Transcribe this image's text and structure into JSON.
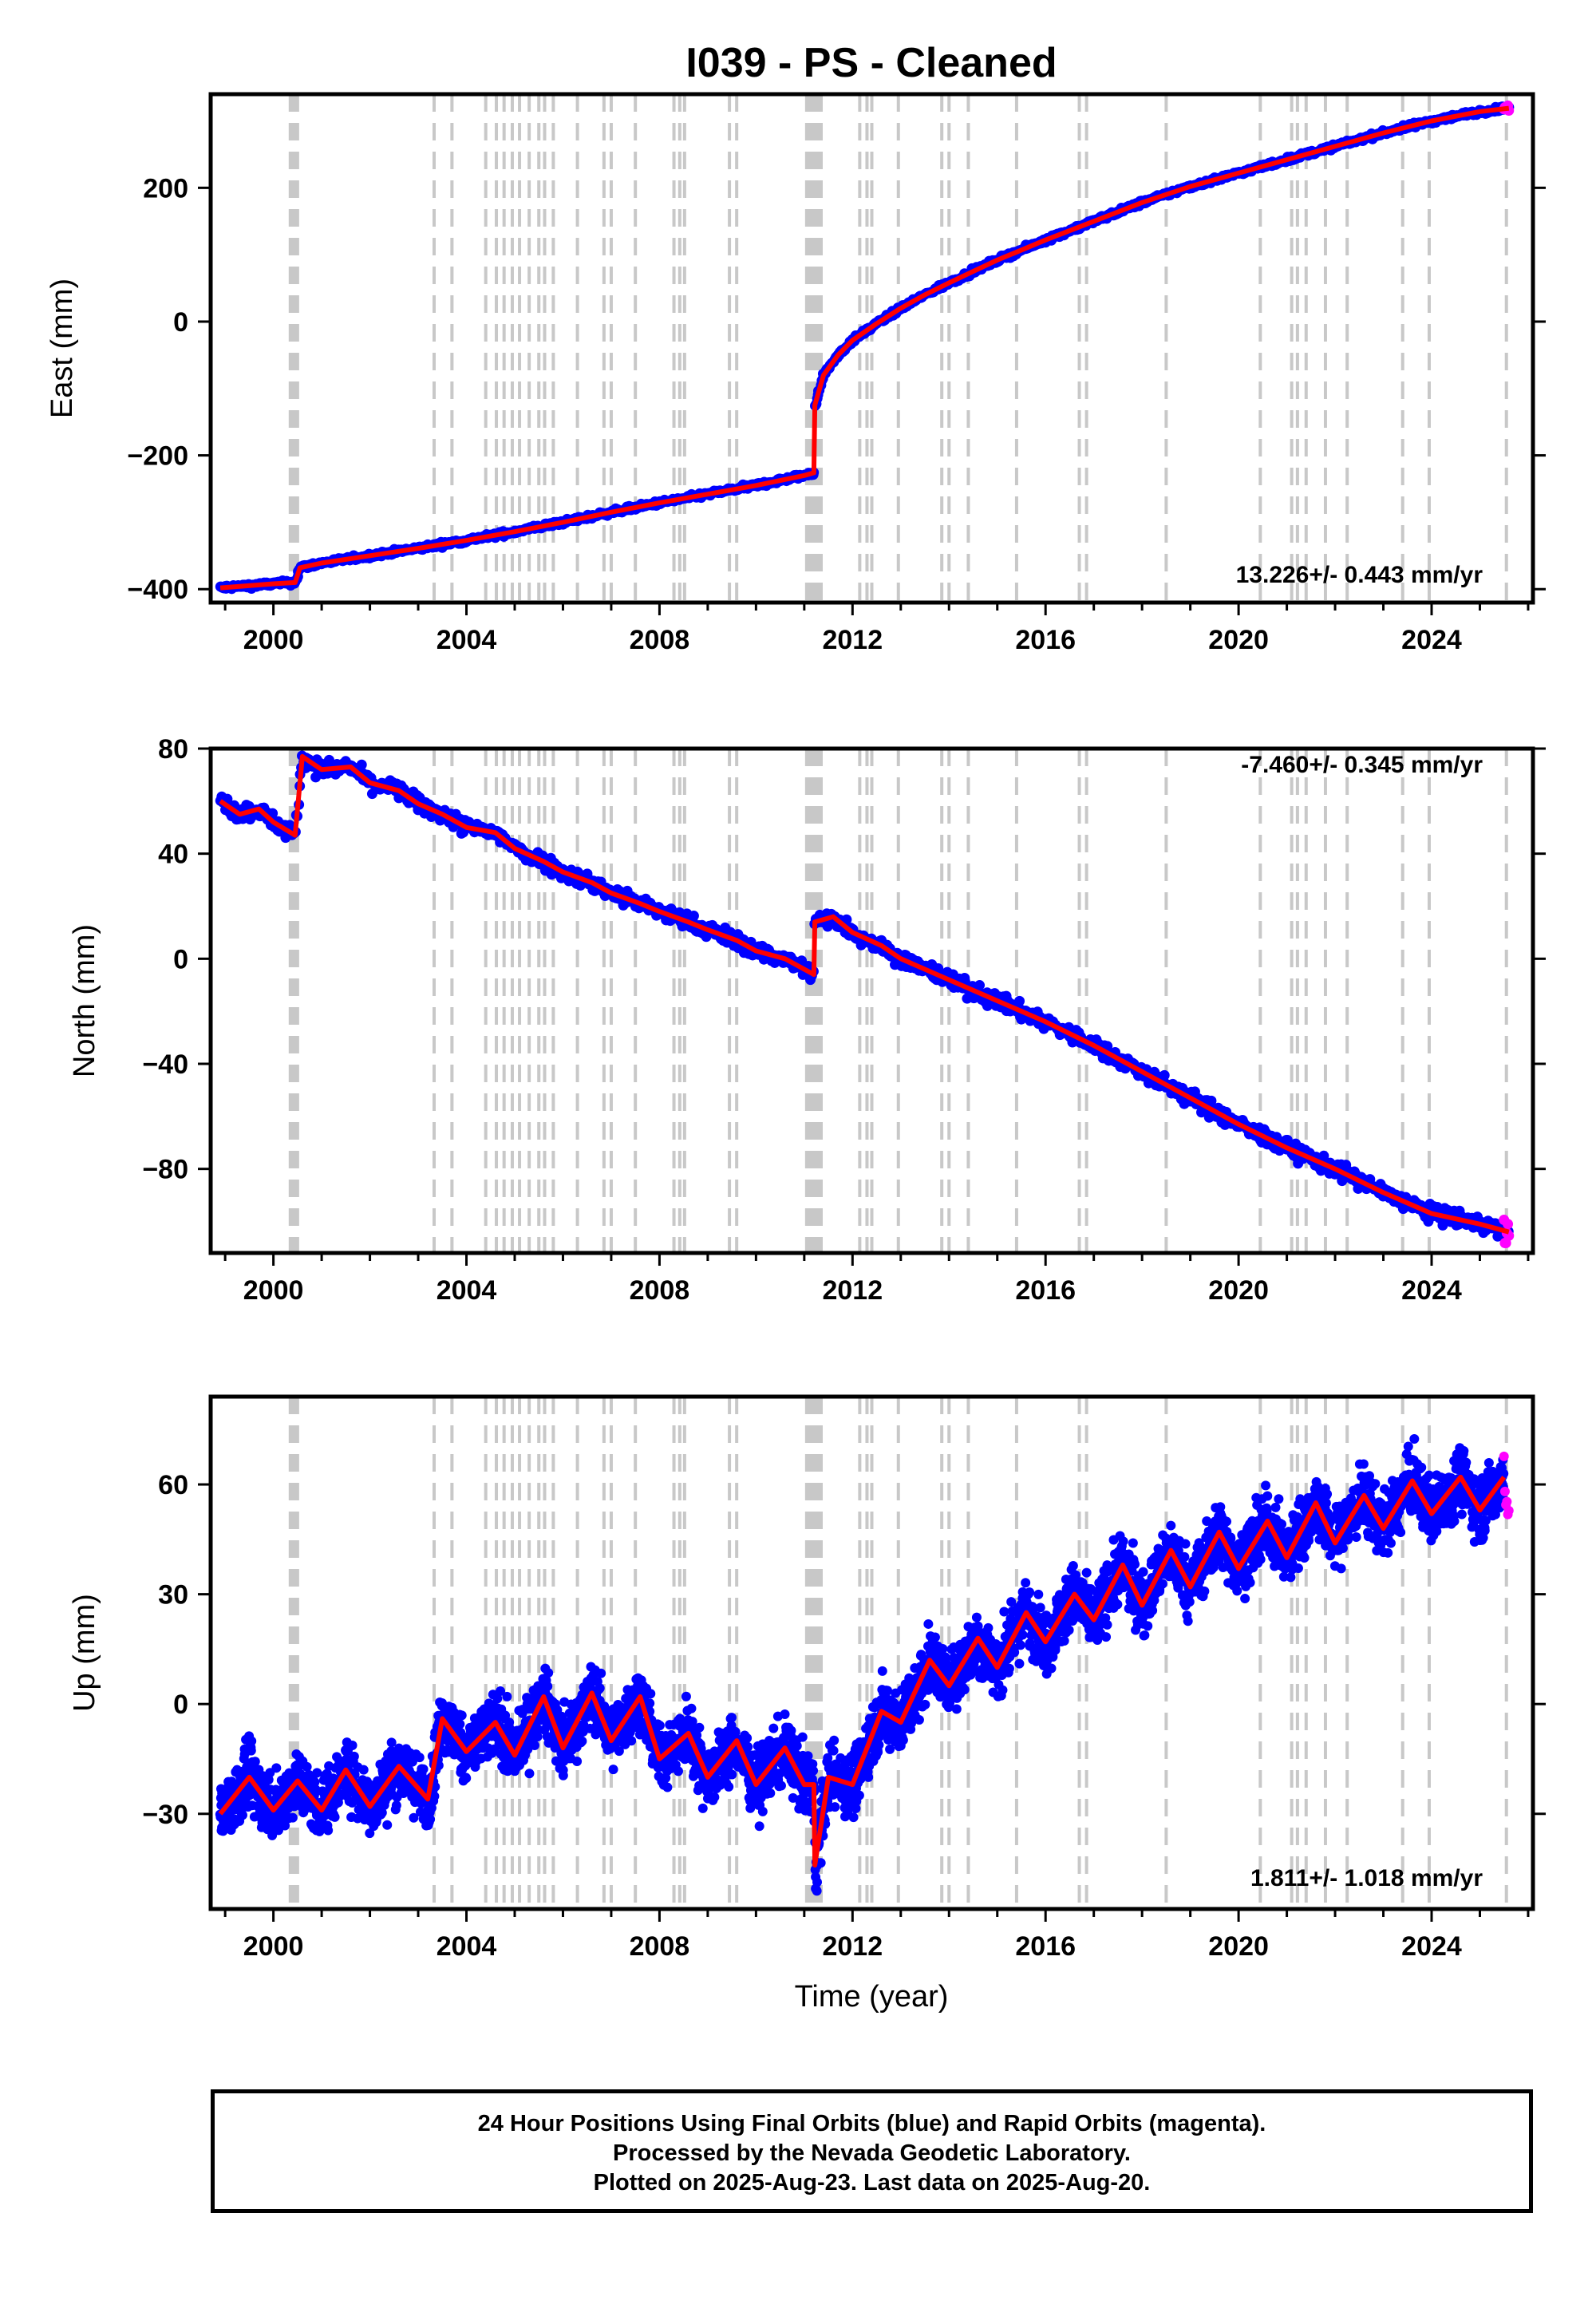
{
  "title": "I039  - PS - Cleaned",
  "xlabel": "Time (year)",
  "footer": {
    "line1": "24 Hour Positions Using Final Orbits (blue) and Rapid Orbits (magenta).",
    "line2": "Processed by the Nevada Geodetic Laboratory.",
    "line3": "Plotted on 2025-Aug-23. Last data on 2025-Aug-20."
  },
  "colors": {
    "final": "#0000ff",
    "rapid": "#ff00ff",
    "model": "#ff0000",
    "event": "#c8c8c8"
  },
  "chart_data": [
    {
      "type": "scatter",
      "ylabel": "East (mm)",
      "rate_label": "13.226+/- 0.443 mm/yr",
      "xlim": [
        1998.7,
        2026.1
      ],
      "ylim": [
        -420,
        340
      ],
      "xticks": [
        2000,
        2004,
        2008,
        2012,
        2016,
        2020,
        2024
      ],
      "yticks": [
        -400,
        -200,
        0,
        200
      ],
      "series": [
        {
          "values": [
            [
              1998.9,
              -398
            ],
            [
              2000.0,
              -392
            ],
            [
              2000.45,
              -390
            ],
            [
              2000.55,
              -368
            ],
            [
              2001.0,
              -361
            ],
            [
              2002.0,
              -350
            ],
            [
              2003.0,
              -339
            ],
            [
              2004.0,
              -327
            ],
            [
              2005.0,
              -314
            ],
            [
              2006.0,
              -300
            ],
            [
              2007.0,
              -285
            ],
            [
              2008.0,
              -271
            ],
            [
              2009.0,
              -258
            ],
            [
              2010.0,
              -245
            ],
            [
              2011.0,
              -230
            ],
            [
              2011.2,
              -226
            ],
            [
              2011.22,
              -125
            ],
            [
              2011.4,
              -80
            ],
            [
              2011.7,
              -50
            ],
            [
              2012.0,
              -28
            ],
            [
              2012.5,
              -3
            ],
            [
              2013.0,
              20
            ],
            [
              2013.5,
              40
            ],
            [
              2014.0,
              58
            ],
            [
              2014.5,
              75
            ],
            [
              2015.0,
              92
            ],
            [
              2016.0,
              122
            ],
            [
              2017.0,
              150
            ],
            [
              2018.0,
              178
            ],
            [
              2019.0,
              202
            ],
            [
              2020.0,
              222
            ],
            [
              2021.0,
              242
            ],
            [
              2022.0,
              262
            ],
            [
              2023.0,
              282
            ],
            [
              2024.0,
              300
            ],
            [
              2025.0,
              314
            ],
            [
              2025.6,
              319
            ]
          ]
        }
      ]
    },
    {
      "type": "scatter",
      "ylabel": "North (mm)",
      "rate_label": "-7.460+/- 0.345 mm/yr",
      "xlim": [
        1998.7,
        2026.1
      ],
      "ylim": [
        -112,
        80
      ],
      "xticks": [
        2000,
        2004,
        2008,
        2012,
        2016,
        2020,
        2024
      ],
      "yticks": [
        -80,
        -40,
        0,
        40,
        80
      ],
      "series": [
        {
          "values": [
            [
              1998.9,
              60
            ],
            [
              1999.3,
              55
            ],
            [
              1999.7,
              57
            ],
            [
              2000.0,
              52
            ],
            [
              2000.45,
              47
            ],
            [
              2000.6,
              77
            ],
            [
              2001.0,
              72
            ],
            [
              2001.6,
              73
            ],
            [
              2002.0,
              67
            ],
            [
              2002.6,
              64
            ],
            [
              2003.0,
              59
            ],
            [
              2003.5,
              55
            ],
            [
              2004.0,
              50
            ],
            [
              2004.6,
              48
            ],
            [
              2005.0,
              42
            ],
            [
              2005.6,
              37
            ],
            [
              2006.0,
              33
            ],
            [
              2006.6,
              29
            ],
            [
              2007.0,
              25
            ],
            [
              2007.6,
              21
            ],
            [
              2008.0,
              18
            ],
            [
              2008.6,
              14
            ],
            [
              2009.0,
              11
            ],
            [
              2009.6,
              7
            ],
            [
              2010.0,
              3
            ],
            [
              2010.6,
              0
            ],
            [
              2011.2,
              -6
            ],
            [
              2011.22,
              14
            ],
            [
              2011.6,
              16
            ],
            [
              2012.0,
              10
            ],
            [
              2012.6,
              5
            ],
            [
              2013.0,
              0
            ],
            [
              2014.0,
              -8
            ],
            [
              2015.0,
              -16
            ],
            [
              2016.0,
              -24
            ],
            [
              2017.0,
              -33
            ],
            [
              2018.0,
              -43
            ],
            [
              2019.0,
              -53
            ],
            [
              2020.0,
              -63
            ],
            [
              2021.0,
              -72
            ],
            [
              2022.0,
              -80
            ],
            [
              2023.0,
              -89
            ],
            [
              2024.0,
              -97
            ],
            [
              2025.0,
              -101
            ],
            [
              2025.6,
              -104
            ]
          ]
        }
      ]
    },
    {
      "type": "scatter",
      "ylabel": "Up (mm)",
      "rate_label": "1.811+/- 1.018 mm/yr",
      "xlim": [
        1998.7,
        2026.1
      ],
      "ylim": [
        -56,
        84
      ],
      "xticks": [
        2000,
        2004,
        2008,
        2012,
        2016,
        2020,
        2024
      ],
      "yticks": [
        -30,
        0,
        30,
        60
      ],
      "series": [
        {
          "values": [
            [
              1998.9,
              -30
            ],
            [
              1999.5,
              -20
            ],
            [
              2000.0,
              -29
            ],
            [
              2000.5,
              -21
            ],
            [
              2001.0,
              -29
            ],
            [
              2001.5,
              -18
            ],
            [
              2002.0,
              -28
            ],
            [
              2002.6,
              -17
            ],
            [
              2003.2,
              -26
            ],
            [
              2003.5,
              -4
            ],
            [
              2004.0,
              -13
            ],
            [
              2004.6,
              -5
            ],
            [
              2005.0,
              -14
            ],
            [
              2005.6,
              2
            ],
            [
              2006.0,
              -12
            ],
            [
              2006.6,
              3
            ],
            [
              2007.0,
              -10
            ],
            [
              2007.6,
              2
            ],
            [
              2008.0,
              -15
            ],
            [
              2008.6,
              -8
            ],
            [
              2009.0,
              -20
            ],
            [
              2009.6,
              -10
            ],
            [
              2010.0,
              -22
            ],
            [
              2010.6,
              -12
            ],
            [
              2011.0,
              -22
            ],
            [
              2011.2,
              -22
            ],
            [
              2011.22,
              -44
            ],
            [
              2011.5,
              -20
            ],
            [
              2012.0,
              -22
            ],
            [
              2012.6,
              -2
            ],
            [
              2013.0,
              -5
            ],
            [
              2013.6,
              12
            ],
            [
              2014.0,
              5
            ],
            [
              2014.6,
              18
            ],
            [
              2015.0,
              10
            ],
            [
              2015.6,
              25
            ],
            [
              2016.0,
              17
            ],
            [
              2016.6,
              30
            ],
            [
              2017.0,
              23
            ],
            [
              2017.6,
              38
            ],
            [
              2018.0,
              27
            ],
            [
              2018.6,
              42
            ],
            [
              2019.0,
              32
            ],
            [
              2019.6,
              47
            ],
            [
              2020.0,
              37
            ],
            [
              2020.6,
              50
            ],
            [
              2021.0,
              40
            ],
            [
              2021.6,
              55
            ],
            [
              2022.0,
              44
            ],
            [
              2022.6,
              57
            ],
            [
              2023.0,
              48
            ],
            [
              2023.6,
              61
            ],
            [
              2024.0,
              52
            ],
            [
              2024.6,
              62
            ],
            [
              2025.0,
              53
            ],
            [
              2025.5,
              62
            ]
          ]
        }
      ]
    }
  ],
  "events": [
    2000.35,
    2000.38,
    2000.41,
    2000.44,
    2000.47,
    2000.5,
    2003.33,
    2003.7,
    2004.4,
    2004.62,
    2004.78,
    2004.95,
    2005.1,
    2005.3,
    2005.5,
    2005.62,
    2005.8,
    2006.3,
    2006.85,
    2007.0,
    2007.5,
    2008.3,
    2008.42,
    2008.52,
    2009.45,
    2009.6,
    2011.05,
    2011.1,
    2011.15,
    2011.2,
    2011.25,
    2011.3,
    2011.35,
    2012.15,
    2012.3,
    2012.4,
    2012.95,
    2013.85,
    2014.0,
    2014.4,
    2015.4,
    2016.7,
    2016.85,
    2018.5,
    2020.45,
    2021.1,
    2021.22,
    2021.4,
    2021.8,
    2022.25,
    2023.4,
    2023.95,
    2025.55
  ]
}
